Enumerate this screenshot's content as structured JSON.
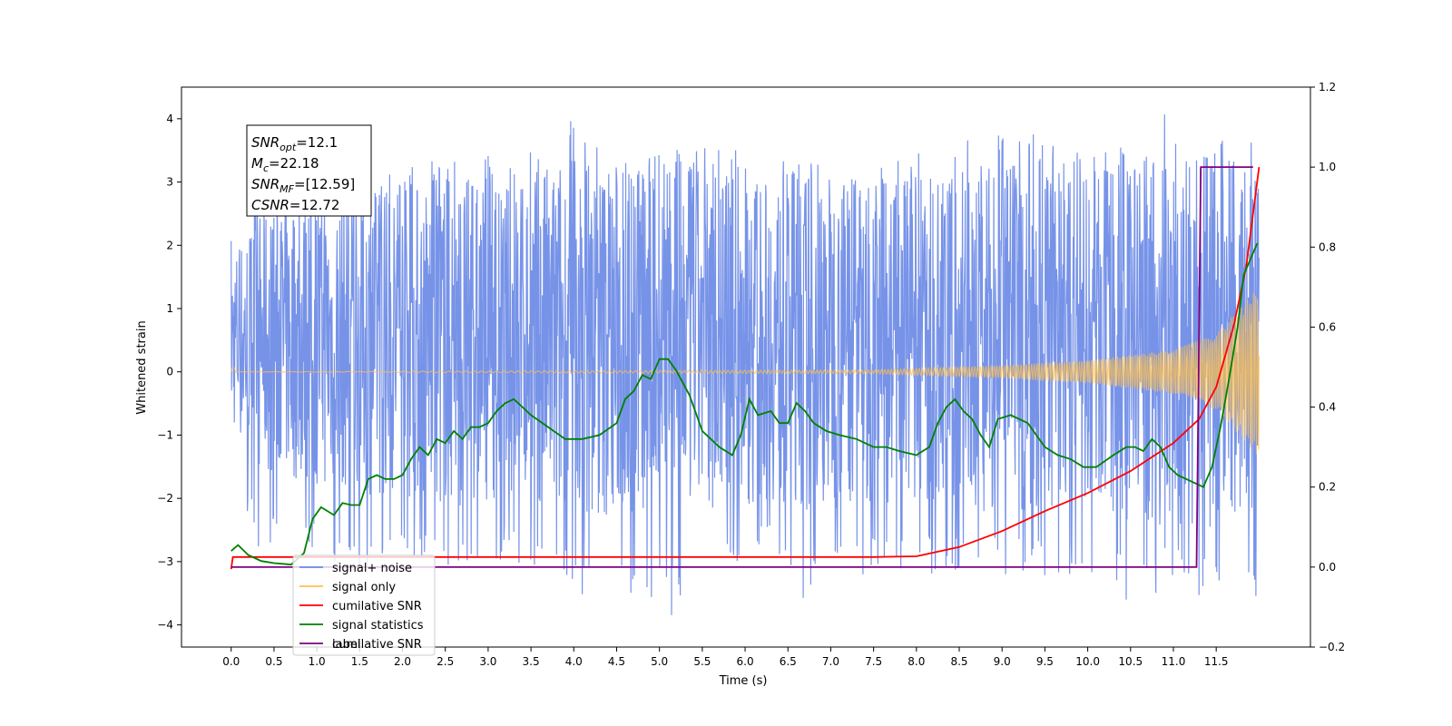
{
  "chart_data": {
    "type": "line",
    "title": "",
    "xlabel": "Time (s)",
    "ylabel": "Whitened strain",
    "xlim": [
      -0.58,
      12.6
    ],
    "ylim": [
      -4.35,
      4.5
    ],
    "y2lim": [
      -0.2,
      1.2
    ],
    "x_ticks": [
      "0.0",
      "0.5",
      "1.0",
      "1.5",
      "2.0",
      "2.5",
      "3.0",
      "3.5",
      "4.0",
      "4.5",
      "5.0",
      "5.5",
      "6.0",
      "6.5",
      "7.0",
      "7.5",
      "8.0",
      "8.5",
      "9.0",
      "9.5",
      "10.0",
      "10.5",
      "11.0",
      "11.5"
    ],
    "y_ticks": [
      "−4",
      "−3",
      "−2",
      "−1",
      "0",
      "1",
      "2",
      "3",
      "4"
    ],
    "y2_ticks": [
      "−0.2",
      "0.0",
      "0.2",
      "0.4",
      "0.6",
      "0.8",
      "1.0",
      "1.2"
    ],
    "grid": false,
    "legend_position": "lower-left",
    "annotation": {
      "lines": [
        {
          "base": "SNR",
          "sub": "opt",
          "value": "=12.1"
        },
        {
          "base": "M",
          "sub": "c",
          "value": "=22.18"
        },
        {
          "base": "SNR",
          "sub": "MF",
          "value": "=[12.59]"
        },
        {
          "base": "CSNR",
          "sub": "",
          "value": "=12.72"
        }
      ]
    },
    "legend": [
      {
        "label": "signal+ noise",
        "color": "#6b8ae6"
      },
      {
        "label": "signal only",
        "color": "#ffc04d"
      },
      {
        "label": "cumilative SNR",
        "color": "#ff0000"
      },
      {
        "label": "signal statistics",
        "color": "#008000"
      },
      {
        "label": "label",
        "color": "#800080"
      }
    ],
    "legend_overlap_text": "cumilative SNR",
    "series": [
      {
        "name": "signal+ noise",
        "axis": "left",
        "color": "#6b8ae6",
        "kind": "noise",
        "x_range": [
          0.0,
          12.0
        ],
        "center": 0.5,
        "peaks": [
          [
            0.0,
            2.1,
            -1.4
          ],
          [
            0.3,
            2.6,
            -2.8
          ],
          [
            0.9,
            3.0,
            -2.9
          ],
          [
            1.5,
            2.9,
            -3.3
          ],
          [
            2.6,
            3.7,
            -3.1
          ],
          [
            3.2,
            3.3,
            -3.0
          ],
          [
            3.9,
            4.1,
            -3.5
          ],
          [
            4.6,
            3.6,
            -3.7
          ],
          [
            4.8,
            3.6,
            -3.9
          ],
          [
            5.15,
            3.6,
            -3.85
          ],
          [
            5.5,
            3.6,
            -3.3
          ],
          [
            6.3,
            3.5,
            -3.0
          ],
          [
            6.7,
            3.4,
            -3.7
          ],
          [
            7.4,
            3.3,
            -3.2
          ],
          [
            8.4,
            3.6,
            -3.2
          ],
          [
            9.1,
            3.9,
            -3.2
          ],
          [
            10.0,
            3.4,
            -3.3
          ],
          [
            10.3,
            3.6,
            -3.4
          ],
          [
            10.6,
            3.6,
            -3.9
          ],
          [
            10.9,
            4.1,
            -3.4
          ],
          [
            11.6,
            3.9,
            -3.7
          ],
          [
            11.95,
            3.6,
            -3.6
          ]
        ]
      },
      {
        "name": "signal only",
        "axis": "left",
        "color": "#ffc04d",
        "kind": "chirp",
        "x_range": [
          0.0,
          12.0
        ],
        "envelope": [
          [
            0.0,
            0.25
          ],
          [
            0.05,
            0.0
          ],
          [
            7.5,
            0.03
          ],
          [
            9.0,
            0.1
          ],
          [
            10.0,
            0.18
          ],
          [
            11.0,
            0.35
          ],
          [
            11.5,
            0.6
          ],
          [
            12.0,
            1.35
          ]
        ]
      },
      {
        "name": "cumilative SNR",
        "axis": "right",
        "color": "#ff0000",
        "x": [
          0.0,
          0.02,
          0.1,
          7.5,
          8.0,
          8.5,
          9.0,
          9.5,
          10.0,
          10.5,
          11.0,
          11.3,
          11.5,
          11.7,
          11.85,
          12.0
        ],
        "y": [
          -0.005,
          0.025,
          0.025,
          0.025,
          0.027,
          0.05,
          0.09,
          0.14,
          0.185,
          0.24,
          0.31,
          0.37,
          0.45,
          0.6,
          0.75,
          1.0
        ]
      },
      {
        "name": "signal statistics",
        "axis": "right",
        "color": "#008000",
        "x": [
          0.0,
          0.08,
          0.2,
          0.35,
          0.5,
          0.6,
          0.7,
          0.85,
          0.95,
          1.05,
          1.2,
          1.3,
          1.4,
          1.5,
          1.6,
          1.7,
          1.8,
          1.9,
          2.0,
          2.1,
          2.2,
          2.3,
          2.4,
          2.5,
          2.6,
          2.7,
          2.8,
          2.9,
          3.0,
          3.1,
          3.2,
          3.3,
          3.4,
          3.5,
          3.7,
          3.9,
          4.1,
          4.3,
          4.5,
          4.6,
          4.7,
          4.8,
          4.9,
          5.0,
          5.1,
          5.2,
          5.35,
          5.5,
          5.6,
          5.7,
          5.85,
          5.95,
          6.05,
          6.15,
          6.3,
          6.4,
          6.5,
          6.6,
          6.7,
          6.8,
          6.95,
          7.1,
          7.3,
          7.5,
          7.65,
          7.8,
          8.0,
          8.15,
          8.25,
          8.35,
          8.45,
          8.55,
          8.65,
          8.75,
          8.85,
          8.95,
          9.1,
          9.3,
          9.5,
          9.65,
          9.8,
          9.95,
          10.1,
          10.3,
          10.45,
          10.55,
          10.65,
          10.75,
          10.85,
          10.95,
          11.05,
          11.25,
          11.35,
          11.45,
          11.55,
          11.65,
          11.75,
          11.82,
          11.9,
          11.98
        ],
        "y": [
          0.04,
          0.055,
          0.03,
          0.015,
          0.01,
          0.008,
          0.006,
          0.035,
          0.12,
          0.15,
          0.13,
          0.16,
          0.155,
          0.155,
          0.22,
          0.23,
          0.22,
          0.22,
          0.23,
          0.27,
          0.3,
          0.28,
          0.32,
          0.31,
          0.34,
          0.32,
          0.35,
          0.35,
          0.36,
          0.39,
          0.41,
          0.42,
          0.4,
          0.38,
          0.35,
          0.32,
          0.32,
          0.33,
          0.36,
          0.42,
          0.44,
          0.48,
          0.47,
          0.52,
          0.52,
          0.49,
          0.43,
          0.34,
          0.32,
          0.3,
          0.28,
          0.33,
          0.42,
          0.38,
          0.39,
          0.36,
          0.36,
          0.41,
          0.39,
          0.36,
          0.34,
          0.33,
          0.32,
          0.3,
          0.3,
          0.29,
          0.28,
          0.3,
          0.36,
          0.4,
          0.42,
          0.39,
          0.37,
          0.33,
          0.3,
          0.37,
          0.38,
          0.36,
          0.3,
          0.28,
          0.27,
          0.25,
          0.25,
          0.28,
          0.3,
          0.3,
          0.29,
          0.32,
          0.3,
          0.25,
          0.23,
          0.21,
          0.2,
          0.25,
          0.35,
          0.47,
          0.6,
          0.73,
          0.77,
          0.81
        ]
      },
      {
        "name": "label",
        "axis": "right",
        "color": "#800080",
        "x": [
          0.0,
          11.27,
          11.32,
          11.93
        ],
        "y": [
          0.0,
          0.0,
          1.0,
          1.0
        ]
      }
    ]
  }
}
